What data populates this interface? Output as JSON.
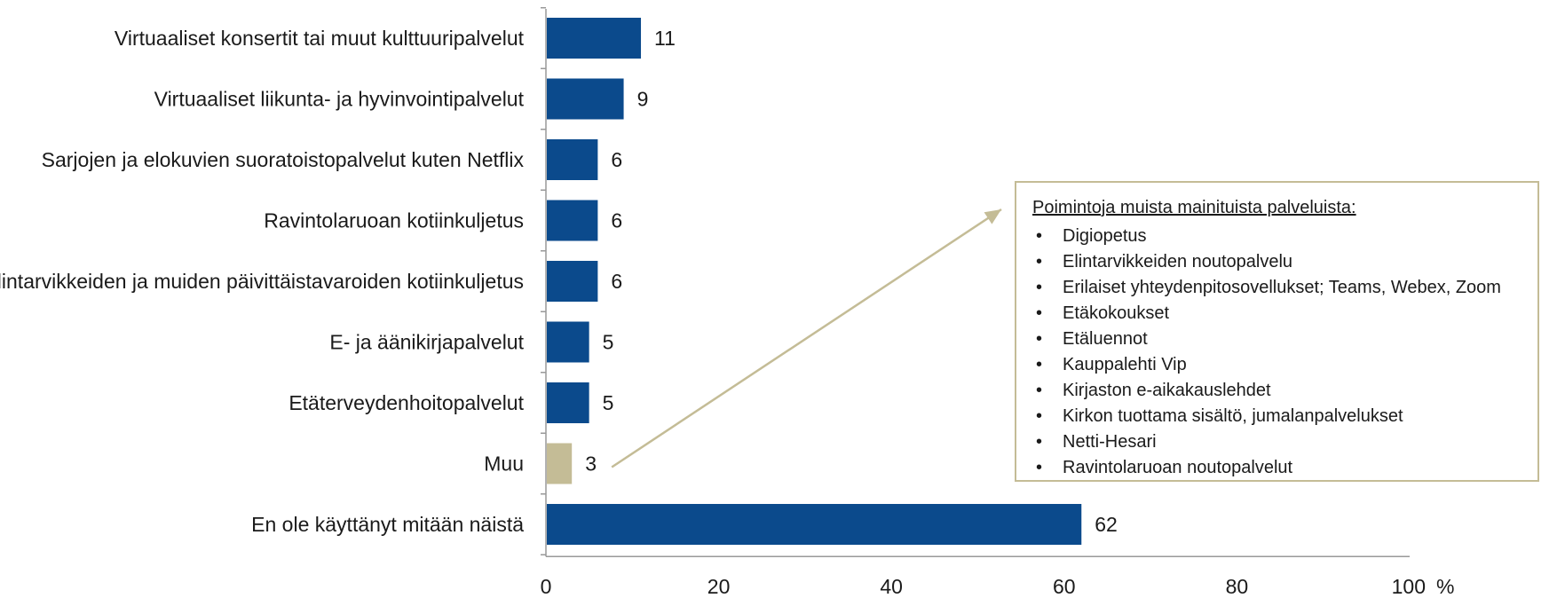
{
  "chart_data": {
    "type": "bar",
    "orientation": "horizontal",
    "categories": [
      "Virtuaaliset konsertit tai muut kulttuuripalvelut",
      "Virtuaaliset liikunta- ja hyvinvointipalvelut",
      "Sarjojen ja elokuvien suoratoistopalvelut kuten Netflix",
      "Ravintolaruoan kotiinkuljetus",
      "Elintarvikkeiden ja muiden päivittäistavaroiden kotiinkuljetus",
      "E- ja äänikirjapalvelut",
      "Etäterveydenhoitopalvelut",
      "Muu",
      "En ole käyttänyt mitään näistä"
    ],
    "values": [
      11,
      9,
      6,
      6,
      6,
      5,
      5,
      3,
      62
    ],
    "value_labels": [
      "11",
      "9",
      "6",
      "6",
      "6",
      "5",
      "5",
      "3",
      "62"
    ],
    "bar_colors": [
      "#0b4a8c",
      "#0b4a8c",
      "#0b4a8c",
      "#0b4a8c",
      "#0b4a8c",
      "#0b4a8c",
      "#0b4a8c",
      "#c4bc96",
      "#0b4a8c"
    ],
    "xlim": [
      0,
      100
    ],
    "x_ticks": [
      0,
      20,
      40,
      60,
      80,
      100
    ],
    "x_tick_labels": [
      "0",
      "20",
      "40",
      "60",
      "80",
      "100"
    ],
    "x_unit": "%",
    "grid": false,
    "legend": "none"
  },
  "callout": {
    "title": "Poimintoja muista mainituista palveluista:",
    "items": [
      "Digiopetus",
      "Elintarvikkeiden noutopalvelu",
      "Erilaiset yhteydenpitosovellukset; Teams, Webex, Zoom",
      "Etäkokoukset",
      "Etäluennot",
      "Kauppalehti Vip",
      "Kirjaston e-aikakauslehdet",
      "Kirkon tuottama sisältö, jumalanpalvelukset",
      "Netti-Hesari",
      "Ravintolaruoan noutopalvelut"
    ],
    "points_to_category": "Muu"
  },
  "colors": {
    "primary_bar": "#0b4a8c",
    "highlight_bar": "#c4bc96",
    "axis": "#999999"
  }
}
